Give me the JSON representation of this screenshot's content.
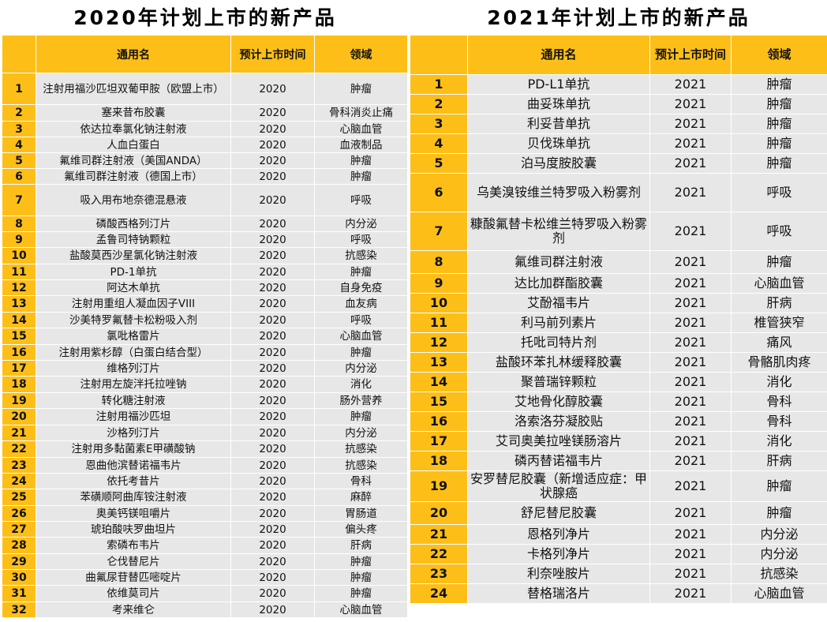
{
  "left": {
    "title": "2020年计划上市的新产品",
    "headers": {
      "name": "通用名",
      "time": "预计上市时间",
      "field": "领域"
    },
    "rows": [
      {
        "no": "1",
        "name": "注射用福沙匹坦双葡甲胺（欧盟上市）",
        "year": "2020",
        "field": "肿瘤"
      },
      {
        "no": "2",
        "name": "塞来昔布胶囊",
        "year": "2020",
        "field": "骨科消炎止痛"
      },
      {
        "no": "3",
        "name": "依达拉奉氯化钠注射液",
        "year": "2020",
        "field": "心脑血管"
      },
      {
        "no": "4",
        "name": "人血白蛋白",
        "year": "2020",
        "field": "血液制品"
      },
      {
        "no": "5",
        "name": "氟维司群注射液（美国ANDA）",
        "year": "2020",
        "field": "肿瘤"
      },
      {
        "no": "6",
        "name": "氟维司群注射液（德国上市）",
        "year": "2020",
        "field": "肿瘤"
      },
      {
        "no": "7",
        "name": "吸入用布地奈德混悬液",
        "year": "2020",
        "field": "呼吸"
      },
      {
        "no": "8",
        "name": "磷酸西格列汀片",
        "year": "2020",
        "field": "内分泌"
      },
      {
        "no": "9",
        "name": "孟鲁司特钠颗粒",
        "year": "2020",
        "field": "呼吸"
      },
      {
        "no": "10",
        "name": "盐酸莫西沙星氯化钠注射液",
        "year": "2020",
        "field": "抗感染"
      },
      {
        "no": "11",
        "name": "PD-1单抗",
        "year": "2020",
        "field": "肿瘤"
      },
      {
        "no": "12",
        "name": "阿达木单抗",
        "year": "2020",
        "field": "自身免疫"
      },
      {
        "no": "13",
        "name": "注射用重组人凝血因子VIII",
        "year": "2020",
        "field": "血友病"
      },
      {
        "no": "14",
        "name": "沙美特罗氟替卡松粉吸入剂",
        "year": "2020",
        "field": "呼吸"
      },
      {
        "no": "15",
        "name": "氯吡格雷片",
        "year": "2020",
        "field": "心脑血管"
      },
      {
        "no": "16",
        "name": "注射用紫杉醇（白蛋白结合型）",
        "year": "2020",
        "field": "肿瘤"
      },
      {
        "no": "17",
        "name": "维格列汀片",
        "year": "2020",
        "field": "内分泌"
      },
      {
        "no": "18",
        "name": "注射用左旋泮托拉唑钠",
        "year": "2020",
        "field": "消化"
      },
      {
        "no": "19",
        "name": "转化糖注射液",
        "year": "2020",
        "field": "肠外营养"
      },
      {
        "no": "20",
        "name": "注射用福沙匹坦",
        "year": "2020",
        "field": "肿瘤"
      },
      {
        "no": "21",
        "name": "沙格列汀片",
        "year": "2020",
        "field": "内分泌"
      },
      {
        "no": "22",
        "name": "注射用多黏菌素E甲磺酸钠",
        "year": "2020",
        "field": "抗感染"
      },
      {
        "no": "23",
        "name": "恩曲他滨替诺福韦片",
        "year": "2020",
        "field": "抗感染"
      },
      {
        "no": "24",
        "name": "依托考昔片",
        "year": "2020",
        "field": "骨科"
      },
      {
        "no": "25",
        "name": "苯磺顺阿曲库铵注射液",
        "year": "2020",
        "field": "麻醉"
      },
      {
        "no": "26",
        "name": "奥美钙镁咀嚼片",
        "year": "2020",
        "field": "胃肠道"
      },
      {
        "no": "27",
        "name": "琥珀酸呋罗曲坦片",
        "year": "2020",
        "field": "偏头疼"
      },
      {
        "no": "28",
        "name": "索磷布韦片",
        "year": "2020",
        "field": "肝病"
      },
      {
        "no": "29",
        "name": "仑伐替尼片",
        "year": "2020",
        "field": "肿瘤"
      },
      {
        "no": "30",
        "name": "曲氟尿苷替匹嘧啶片",
        "year": "2020",
        "field": "肿瘤"
      },
      {
        "no": "31",
        "name": "依维莫司片",
        "year": "2020",
        "field": "肿瘤"
      },
      {
        "no": "32",
        "name": "考来维仑",
        "year": "2020",
        "field": "心脑血管"
      }
    ]
  },
  "right": {
    "title": "2021年计划上市的新产品",
    "headers": {
      "name": "通用名",
      "time": "预计上市时间",
      "field": "领域"
    },
    "rows": [
      {
        "no": "1",
        "name": "PD-L1单抗",
        "year": "2021",
        "field": "肿瘤"
      },
      {
        "no": "2",
        "name": "曲妥珠单抗",
        "year": "2021",
        "field": "肿瘤"
      },
      {
        "no": "3",
        "name": "利妥昔单抗",
        "year": "2021",
        "field": "肿瘤"
      },
      {
        "no": "4",
        "name": "贝伐珠单抗",
        "year": "2021",
        "field": "肿瘤"
      },
      {
        "no": "5",
        "name": "泊马度胺胶囊",
        "year": "2021",
        "field": "肿瘤"
      },
      {
        "no": "6",
        "name": "乌美溴铵维兰特罗吸入粉雾剂",
        "year": "2021",
        "field": "呼吸"
      },
      {
        "no": "7",
        "name": "糠酸氟替卡松维兰特罗吸入粉雾剂",
        "year": "2021",
        "field": "呼吸"
      },
      {
        "no": "8",
        "name": "氟维司群注射液",
        "year": "2021",
        "field": "肿瘤"
      },
      {
        "no": "9",
        "name": "达比加群酯胶囊",
        "year": "2021",
        "field": "心脑血管"
      },
      {
        "no": "10",
        "name": "艾酚福韦片",
        "year": "2021",
        "field": "肝病"
      },
      {
        "no": "11",
        "name": "利马前列素片",
        "year": "2021",
        "field": "椎管狭窄"
      },
      {
        "no": "12",
        "name": "托吡司特片剂",
        "year": "2021",
        "field": "痛风"
      },
      {
        "no": "13",
        "name": "盐酸环苯扎林缓释胶囊",
        "year": "2021",
        "field": "骨骼肌肉疼"
      },
      {
        "no": "14",
        "name": "聚普瑞锌颗粒",
        "year": "2021",
        "field": "消化"
      },
      {
        "no": "15",
        "name": "艾地骨化醇胶囊",
        "year": "2021",
        "field": "骨科"
      },
      {
        "no": "16",
        "name": "洛索洛芬凝胶贴",
        "year": "2021",
        "field": "骨科"
      },
      {
        "no": "17",
        "name": "艾司奥美拉唑镁肠溶片",
        "year": "2021",
        "field": "消化"
      },
      {
        "no": "18",
        "name": "磷丙替诺福韦片",
        "year": "2021",
        "field": "肝病"
      },
      {
        "no": "19",
        "name": "安罗替尼胶囊（新增适应症：甲状腺癌",
        "year": "2021",
        "field": "肿瘤"
      },
      {
        "no": "20",
        "name": "舒尼替尼胶囊",
        "year": "2021",
        "field": "肿瘤"
      },
      {
        "no": "21",
        "name": "恩格列净片",
        "year": "2021",
        "field": "内分泌"
      },
      {
        "no": "22",
        "name": "卡格列净片",
        "year": "2021",
        "field": "内分泌"
      },
      {
        "no": "23",
        "name": "利奈唑胺片",
        "year": "2021",
        "field": "抗感染"
      },
      {
        "no": "24",
        "name": "替格瑞洛片",
        "year": "2021",
        "field": "心脑血管"
      }
    ]
  }
}
